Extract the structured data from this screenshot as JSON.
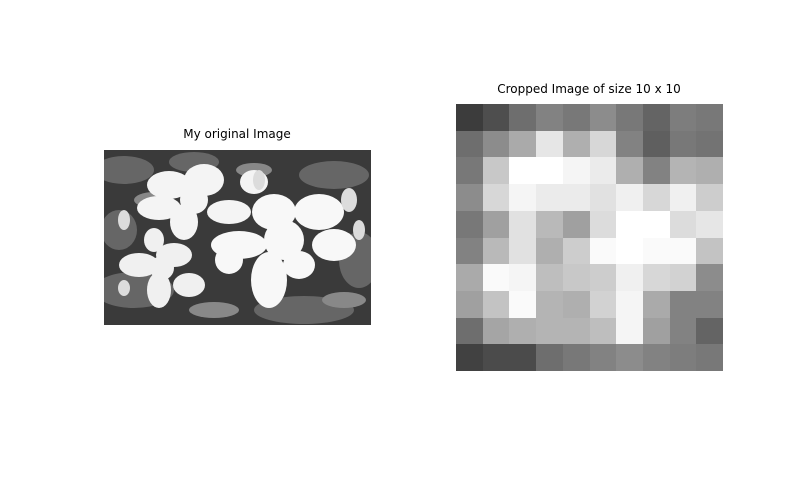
{
  "left_panel": {
    "title": "My original Image"
  },
  "right_panel": {
    "title": "Cropped Image of size 10 x 10",
    "grid_size": 10,
    "pixels": [
      [
        60,
        78,
        110,
        130,
        120,
        140,
        120,
        100,
        125,
        120
      ],
      [
        110,
        140,
        170,
        230,
        175,
        215,
        130,
        95,
        120,
        115
      ],
      [
        120,
        200,
        255,
        255,
        245,
        235,
        175,
        130,
        180,
        175
      ],
      [
        140,
        215,
        245,
        235,
        235,
        225,
        240,
        215,
        240,
        205
      ],
      [
        120,
        160,
        225,
        185,
        160,
        220,
        255,
        255,
        220,
        230
      ],
      [
        130,
        185,
        225,
        175,
        205,
        250,
        255,
        250,
        250,
        195
      ],
      [
        170,
        250,
        245,
        190,
        200,
        205,
        240,
        215,
        210,
        140
      ],
      [
        160,
        195,
        250,
        180,
        175,
        210,
        245,
        170,
        130,
        130
      ],
      [
        110,
        165,
        175,
        180,
        180,
        190,
        245,
        160,
        130,
        100
      ],
      [
        65,
        75,
        75,
        110,
        120,
        130,
        140,
        130,
        125,
        120
      ]
    ]
  }
}
